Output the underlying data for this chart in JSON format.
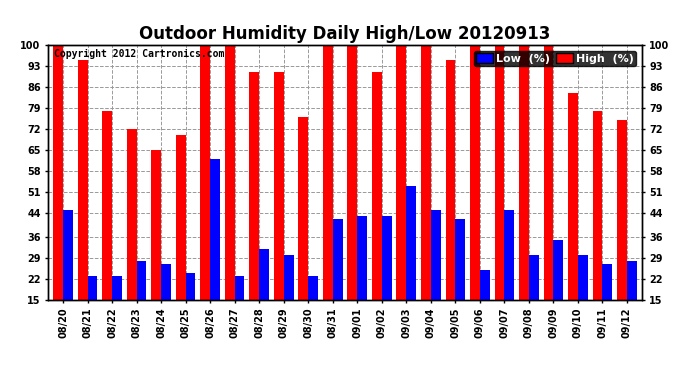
{
  "title": "Outdoor Humidity Daily High/Low 20120913",
  "copyright": "Copyright 2012 Cartronics.com",
  "legend_low": "Low  (%)",
  "legend_high": "High  (%)",
  "dates": [
    "08/20",
    "08/21",
    "08/22",
    "08/23",
    "08/24",
    "08/25",
    "08/26",
    "08/27",
    "08/28",
    "08/29",
    "08/30",
    "08/31",
    "09/01",
    "09/02",
    "09/03",
    "09/04",
    "09/05",
    "09/06",
    "09/07",
    "09/08",
    "09/09",
    "09/10",
    "09/11",
    "09/12"
  ],
  "high": [
    100,
    95,
    78,
    72,
    65,
    70,
    100,
    100,
    91,
    91,
    76,
    100,
    100,
    91,
    100,
    100,
    95,
    100,
    100,
    100,
    100,
    84,
    78,
    75
  ],
  "low": [
    45,
    23,
    23,
    28,
    27,
    24,
    62,
    23,
    32,
    30,
    23,
    42,
    43,
    43,
    53,
    45,
    42,
    25,
    45,
    30,
    35,
    30,
    27,
    28
  ],
  "bar_width": 0.4,
  "ylim": [
    15,
    100
  ],
  "yticks": [
    15,
    22,
    29,
    36,
    44,
    51,
    58,
    65,
    72,
    79,
    86,
    93,
    100
  ],
  "bg_color": "#ffffff",
  "high_color": "#ff0000",
  "low_color": "#0000ff",
  "grid_color": "#999999",
  "title_fontsize": 12,
  "tick_fontsize": 7,
  "legend_fontsize": 8,
  "copyright_fontsize": 7
}
